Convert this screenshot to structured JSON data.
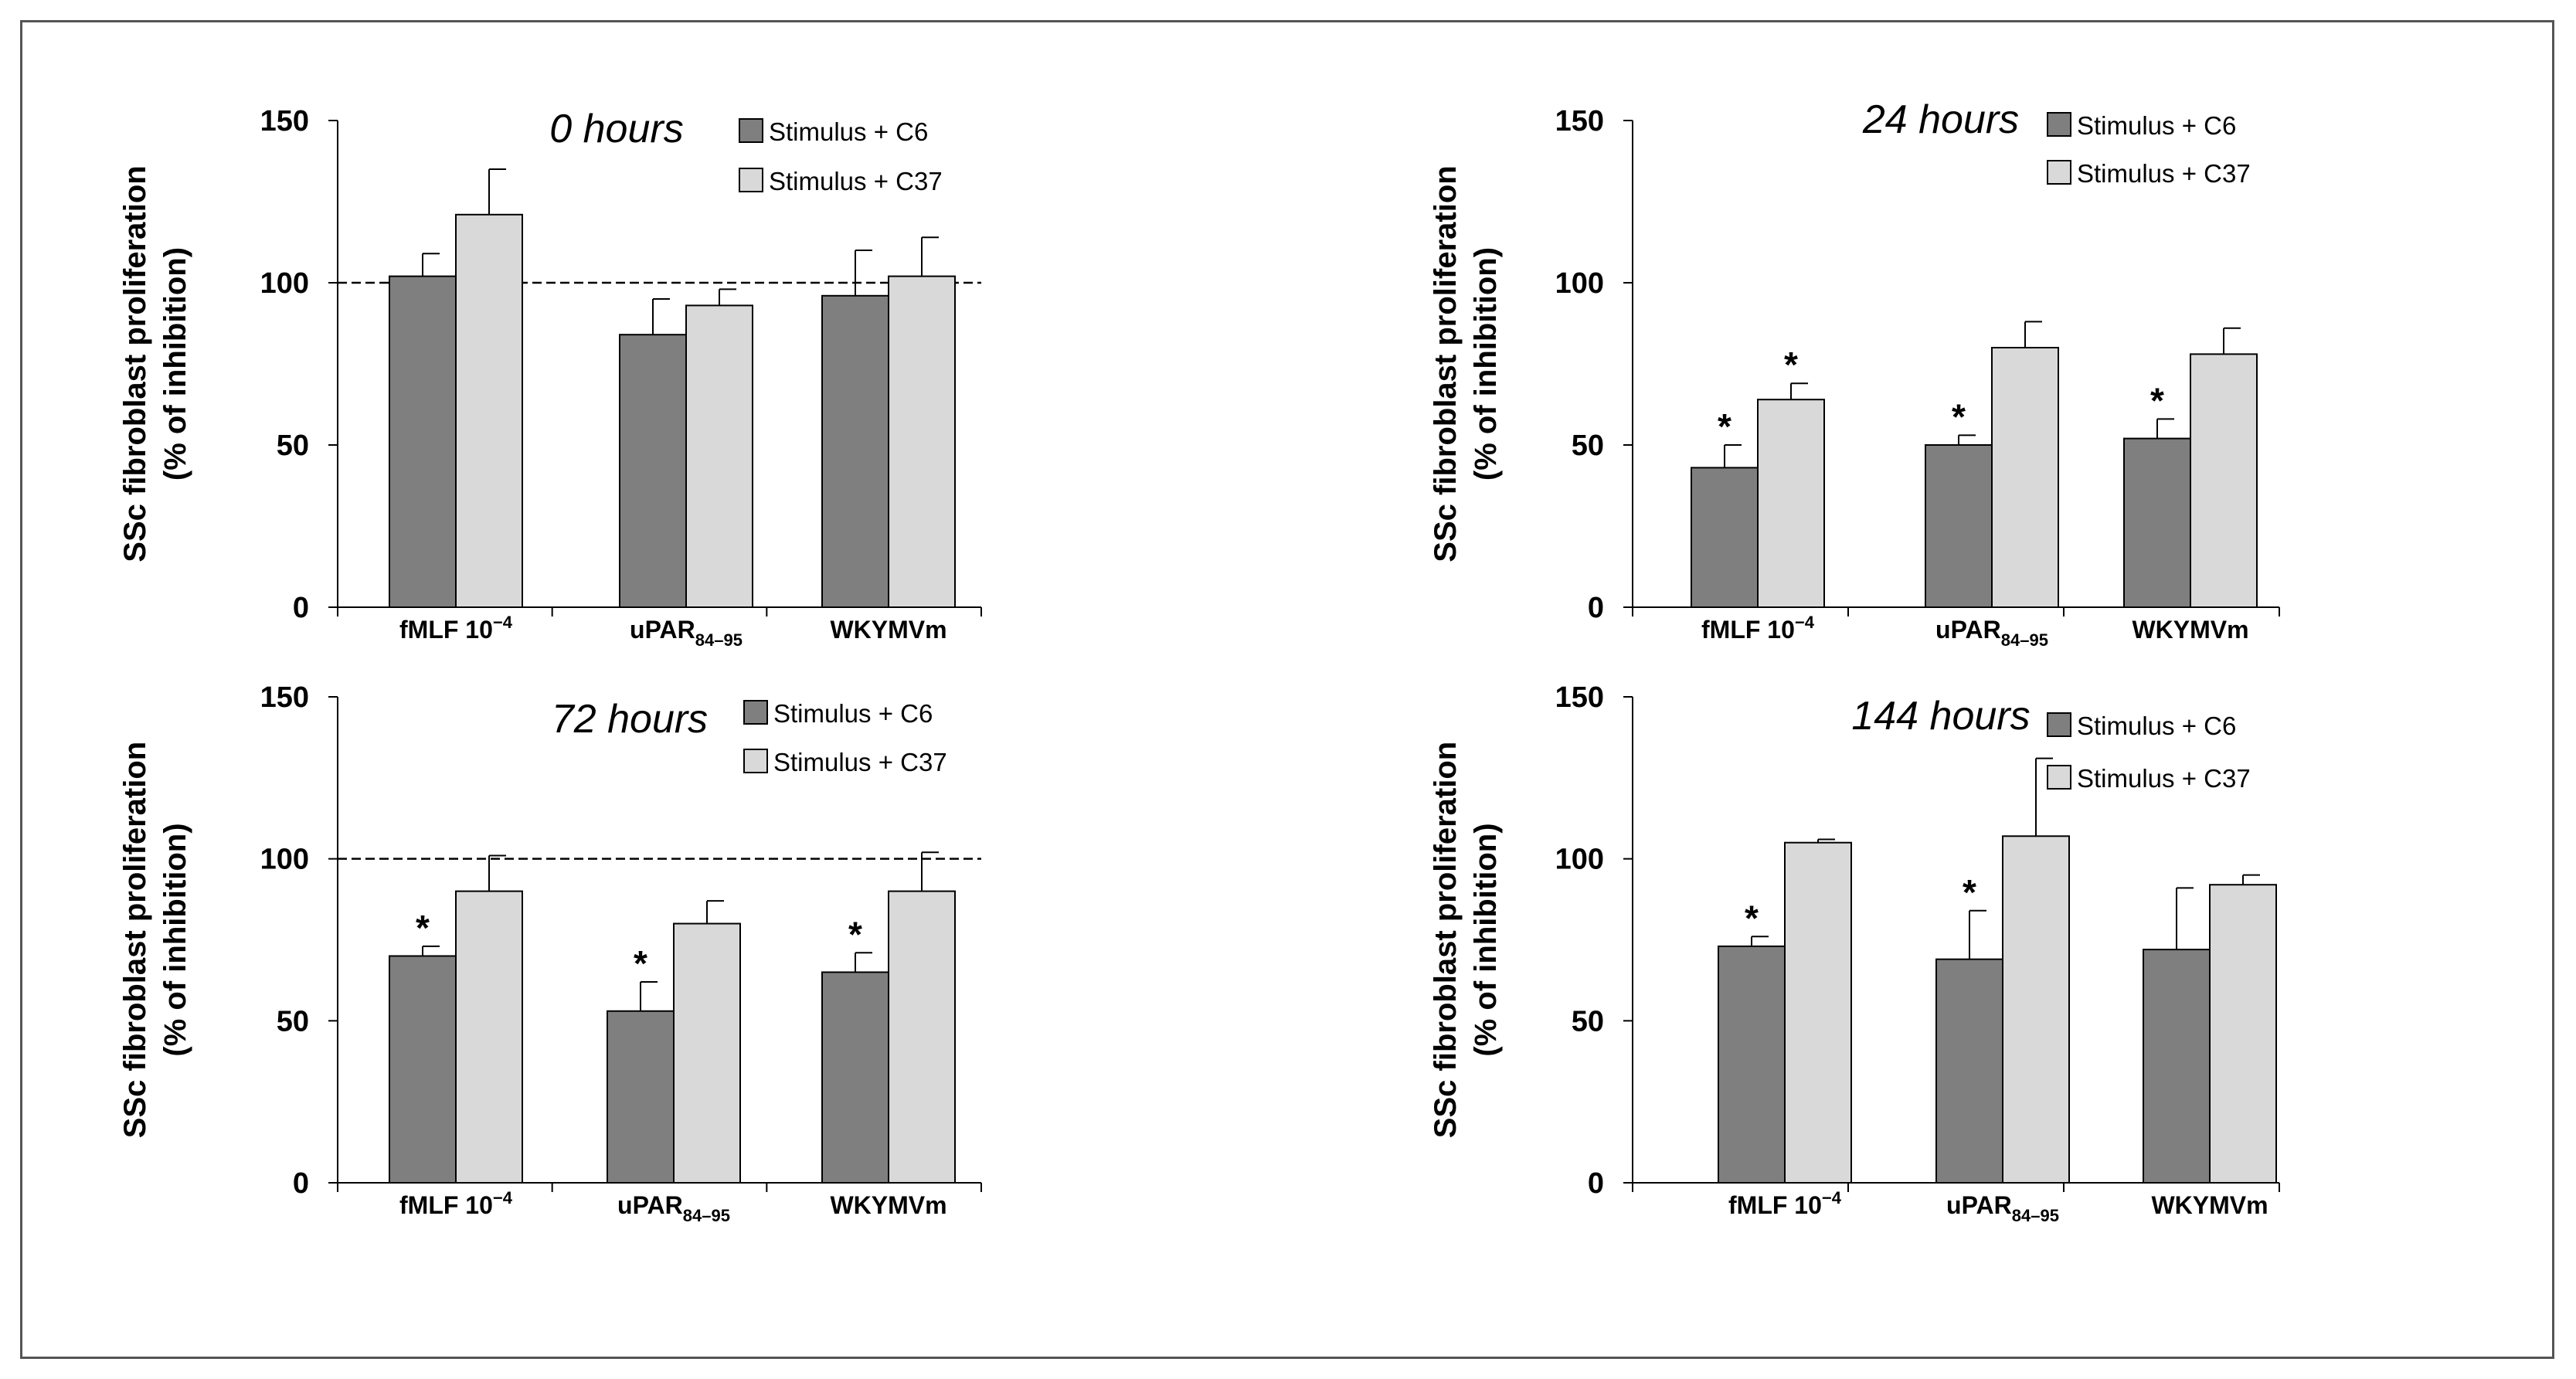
{
  "colors": {
    "c6": "#7f7f7f",
    "c37": "#d9d9d9",
    "edge": "#000000",
    "reference_line": "#000000"
  },
  "chart_data": [
    {
      "type": "bar",
      "title": "0 hours",
      "ylabel_line1": "SSc fibroblast proliferation",
      "ylabel_line2": "(% of inhibition)",
      "ylim": [
        0,
        150
      ],
      "yticks": [
        0,
        50,
        100,
        150
      ],
      "categories": [
        "fMLF 10",
        "uPAR",
        "WKYMVm"
      ],
      "category_super": [
        "−4",
        "",
        ""
      ],
      "category_sub": [
        "",
        "84–95",
        ""
      ],
      "series": [
        {
          "name": "Stimulus + C6",
          "values": [
            102,
            84,
            96
          ],
          "errors": [
            7,
            11,
            14
          ],
          "significant": [
            false,
            false,
            false
          ]
        },
        {
          "name": "Stimulus + C37",
          "values": [
            121,
            93,
            102
          ],
          "errors": [
            14,
            5,
            12
          ],
          "significant": [
            false,
            false,
            false
          ]
        }
      ],
      "reference_line": 100,
      "significance_marker": "*",
      "legend_position": "top-right"
    },
    {
      "type": "bar",
      "title": "24 hours",
      "ylabel_line1": "SSc fibroblast proliferation",
      "ylabel_line2": "(% of inhibition)",
      "ylim": [
        0,
        150
      ],
      "yticks": [
        0,
        50,
        100,
        150
      ],
      "categories": [
        "fMLF 10",
        "uPAR",
        "WKYMVm"
      ],
      "category_super": [
        "−4",
        "",
        ""
      ],
      "category_sub": [
        "",
        "84–95",
        ""
      ],
      "series": [
        {
          "name": "Stimulus + C6",
          "values": [
            43,
            50,
            52
          ],
          "errors": [
            7,
            3,
            6
          ],
          "significant": [
            true,
            true,
            true
          ]
        },
        {
          "name": "Stimulus + C37",
          "values": [
            64,
            80,
            78
          ],
          "errors": [
            5,
            8,
            8
          ],
          "significant": [
            true,
            false,
            false
          ]
        }
      ],
      "reference_line": null,
      "significance_marker": "*",
      "legend_position": "top-right"
    },
    {
      "type": "bar",
      "title": "72 hours",
      "ylabel_line1": "SSc fibroblast proliferation",
      "ylabel_line2": "(% of inhibition)",
      "ylim": [
        0,
        150
      ],
      "yticks": [
        0,
        50,
        100,
        150
      ],
      "categories": [
        "fMLF 10",
        "uPAR",
        "WKYMVm"
      ],
      "category_super": [
        "−4",
        "",
        ""
      ],
      "category_sub": [
        "",
        "84–95",
        ""
      ],
      "series": [
        {
          "name": "Stimulus + C6",
          "values": [
            70,
            53,
            65
          ],
          "errors": [
            3,
            9,
            6
          ],
          "significant": [
            true,
            true,
            true
          ]
        },
        {
          "name": "Stimulus + C37",
          "values": [
            90,
            80,
            90
          ],
          "errors": [
            11,
            7,
            12
          ],
          "significant": [
            false,
            false,
            false
          ]
        }
      ],
      "reference_line": 100,
      "significance_marker": "*",
      "legend_position": "top-right"
    },
    {
      "type": "bar",
      "title": "144 hours",
      "ylabel_line1": "SSc fibroblast proliferation",
      "ylabel_line2": "(% of inhibition)",
      "ylim": [
        0,
        150
      ],
      "yticks": [
        0,
        50,
        100,
        150
      ],
      "categories": [
        "fMLF 10",
        "uPAR",
        "WKYMVm"
      ],
      "category_super": [
        "−4",
        "",
        ""
      ],
      "category_sub": [
        "",
        "84–95",
        ""
      ],
      "series": [
        {
          "name": "Stimulus + C6",
          "values": [
            73,
            69,
            72
          ],
          "errors": [
            3,
            15,
            19
          ],
          "significant": [
            true,
            true,
            false
          ]
        },
        {
          "name": "Stimulus + C37",
          "values": [
            105,
            107,
            92
          ],
          "errors": [
            1,
            24,
            3
          ],
          "significant": [
            false,
            false,
            false
          ]
        }
      ],
      "reference_line": null,
      "significance_marker": "*",
      "legend_position": "top-right"
    }
  ]
}
